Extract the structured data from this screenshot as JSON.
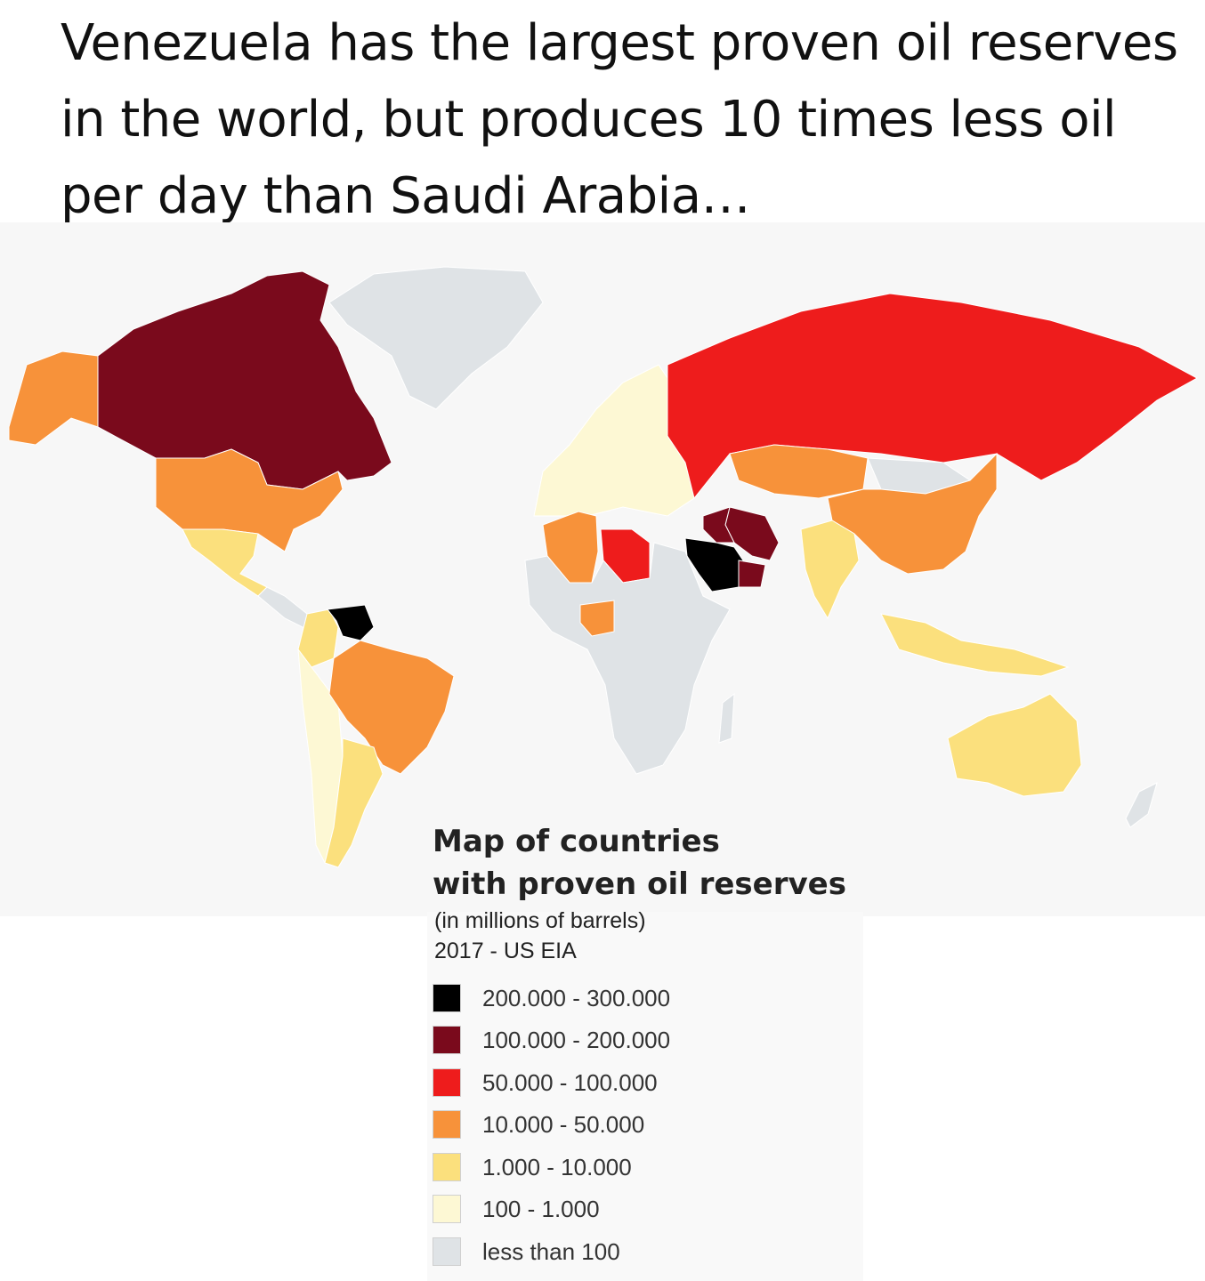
{
  "caption": "Venezuela has the largest proven oil reserves in the world, but produces 10 times less oil per day than Saudi Arabia…",
  "legend": {
    "title": "Map of countries\nwith proven oil reserves",
    "unit_note": "(in millions of barrels)",
    "source": "2017 - US EIA",
    "classes": [
      {
        "label": "200.000 - 300.000",
        "color": "#000000"
      },
      {
        "label": "100.000 - 200.000",
        "color": "#7a0a1c"
      },
      {
        "label": "50.000 - 100.000",
        "color": "#ee1c1c"
      },
      {
        "label": "10.000 - 50.000",
        "color": "#f7923a"
      },
      {
        "label": "1.000 - 10.000",
        "color": "#fbe07d"
      },
      {
        "label": "100 - 1.000",
        "color": "#fdf8d4"
      },
      {
        "label": "less than 100",
        "color": "#dfe3e6"
      }
    ]
  },
  "map": {
    "background": "#f7f7f7",
    "regions": [
      {
        "name": "Canada",
        "class": 1
      },
      {
        "name": "Alaska",
        "class": 3
      },
      {
        "name": "United States",
        "class": 3
      },
      {
        "name": "Greenland",
        "class": 6
      },
      {
        "name": "Mexico",
        "class": 4
      },
      {
        "name": "Venezuela",
        "class": 0
      },
      {
        "name": "Brazil",
        "class": 3
      },
      {
        "name": "Colombia",
        "class": 4
      },
      {
        "name": "Argentina",
        "class": 4
      },
      {
        "name": "Chile",
        "class": 5
      },
      {
        "name": "Russia",
        "class": 2
      },
      {
        "name": "Kazakhstan",
        "class": 3
      },
      {
        "name": "China",
        "class": 3
      },
      {
        "name": "Saudi Arabia",
        "class": 0
      },
      {
        "name": "Iran",
        "class": 1
      },
      {
        "name": "Iraq",
        "class": 1
      },
      {
        "name": "Kuwait",
        "class": 1
      },
      {
        "name": "UAE",
        "class": 1
      },
      {
        "name": "Libya",
        "class": 2
      },
      {
        "name": "Algeria",
        "class": 3
      },
      {
        "name": "Nigeria",
        "class": 3
      },
      {
        "name": "India",
        "class": 4
      },
      {
        "name": "Australia",
        "class": 4
      },
      {
        "name": "Indonesia",
        "class": 4
      },
      {
        "name": "Africa (rest)",
        "class": 6
      },
      {
        "name": "Europe",
        "class": 5
      }
    ]
  }
}
